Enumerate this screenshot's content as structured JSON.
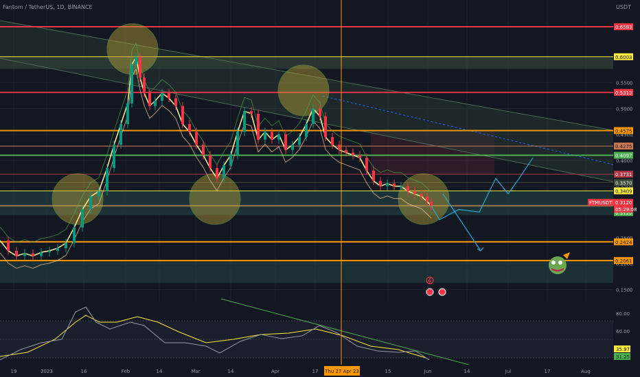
{
  "header": {
    "title": "Fantom / TetherUS, 1D, BINANCE",
    "currency": "USDT"
  },
  "chart_data": {
    "type": "candlestick",
    "symbol": "FTMUSDT",
    "countdown": "05:29:08",
    "ylim": [
      0.14,
      0.71
    ],
    "y_ticks": [
      0.55,
      0.5,
      0.45,
      0.4,
      0.35,
      0.3,
      0.25,
      0.2,
      0.15
    ],
    "y_tick_labels": [
      "0.5500",
      "0.5000",
      "0.4500",
      "0.4000",
      "0.3500",
      "0.3000",
      "0.2500",
      "0.2000",
      "0.1500"
    ],
    "x_ticks": [
      "19",
      "2023",
      "16",
      "Feb",
      "14",
      "Mar",
      "14",
      "Apr",
      "17",
      "15",
      "Jun",
      "14",
      "Jul",
      "17",
      "Aug"
    ],
    "crosshair_label": "Thu 27 Apr 23",
    "levels": [
      {
        "price": 0.6583,
        "label": "0.6583",
        "color": "#f23645"
      },
      {
        "price": 0.6003,
        "label": "0.6003",
        "color": "#ffeb3b"
      },
      {
        "price": 0.5313,
        "label": "0.5313",
        "color": "#f23645"
      },
      {
        "price": 0.4575,
        "label": "0.4575",
        "color": "#ff9800"
      },
      {
        "price": 0.4275,
        "label": "0.4275",
        "color": "#cc7a52"
      },
      {
        "price": 0.4097,
        "label": "0.4097",
        "color": "#4caf50"
      },
      {
        "price": 0.3731,
        "label": "0.3731",
        "color": "#b03545"
      },
      {
        "price": 0.357,
        "label": "0.3570",
        "color": "#3c4a3a"
      },
      {
        "price": 0.3409,
        "label": "0.3409",
        "color": "#ffeb3b"
      },
      {
        "price": 0.312,
        "label": "0.3120",
        "color": "#f23645"
      },
      {
        "price": 0.312,
        "label": "0.3120",
        "color": "#4caf50"
      },
      {
        "price": 0.2424,
        "label": "0.2424",
        "color": "#ff9800"
      },
      {
        "price": 0.2061,
        "label": "0.2061",
        "color": "#ff9800"
      }
    ],
    "price_label": {
      "symbol": "FTMUSDT",
      "price": "0.3120",
      "countdown": "05:29:08"
    },
    "close_path": [
      [
        0,
        0.245
      ],
      [
        12,
        0.225
      ],
      [
        24,
        0.215
      ],
      [
        36,
        0.22
      ],
      [
        48,
        0.215
      ],
      [
        60,
        0.222
      ],
      [
        72,
        0.225
      ],
      [
        84,
        0.23
      ],
      [
        96,
        0.24
      ],
      [
        108,
        0.27
      ],
      [
        120,
        0.305
      ],
      [
        132,
        0.33
      ],
      [
        144,
        0.34
      ],
      [
        156,
        0.385
      ],
      [
        166,
        0.43
      ],
      [
        176,
        0.47
      ],
      [
        186,
        0.51
      ],
      [
        192,
        0.585
      ],
      [
        198,
        0.6
      ],
      [
        204,
        0.56
      ],
      [
        210,
        0.53
      ],
      [
        218,
        0.505
      ],
      [
        226,
        0.515
      ],
      [
        236,
        0.53
      ],
      [
        246,
        0.52
      ],
      [
        256,
        0.505
      ],
      [
        266,
        0.47
      ],
      [
        276,
        0.455
      ],
      [
        286,
        0.43
      ],
      [
        296,
        0.41
      ],
      [
        306,
        0.385
      ],
      [
        316,
        0.365
      ],
      [
        326,
        0.39
      ],
      [
        336,
        0.41
      ],
      [
        346,
        0.455
      ],
      [
        356,
        0.495
      ],
      [
        366,
        0.49
      ],
      [
        376,
        0.44
      ],
      [
        386,
        0.455
      ],
      [
        396,
        0.44
      ],
      [
        406,
        0.45
      ],
      [
        416,
        0.42
      ],
      [
        426,
        0.43
      ],
      [
        436,
        0.445
      ],
      [
        446,
        0.47
      ],
      [
        456,
        0.5
      ],
      [
        466,
        0.485
      ],
      [
        474,
        0.445
      ],
      [
        484,
        0.43
      ],
      [
        494,
        0.42
      ],
      [
        504,
        0.415
      ],
      [
        514,
        0.41
      ],
      [
        524,
        0.405
      ],
      [
        534,
        0.38
      ],
      [
        544,
        0.36
      ],
      [
        554,
        0.35
      ],
      [
        564,
        0.355
      ],
      [
        574,
        0.35
      ],
      [
        584,
        0.35
      ],
      [
        594,
        0.34
      ],
      [
        604,
        0.335
      ],
      [
        614,
        0.33
      ],
      [
        622,
        0.32
      ],
      [
        628,
        0.312
      ]
    ],
    "projection": [
      [
        628,
        0.312
      ],
      [
        640,
        0.285
      ],
      [
        668,
        0.305
      ],
      [
        698,
        0.3
      ],
      [
        722,
        0.365
      ],
      [
        740,
        0.335
      ],
      [
        756,
        0.365
      ],
      [
        776,
        0.405
      ]
    ],
    "projection_down": [
      [
        645,
        0.335
      ],
      [
        700,
        0.225
      ]
    ],
    "circles": [
      {
        "x": 193,
        "y": 0.615
      },
      {
        "x": 442,
        "y": 0.535
      },
      {
        "x": 113,
        "y": 0.325
      },
      {
        "x": 313,
        "y": 0.325
      },
      {
        "x": 617,
        "y": 0.325
      }
    ],
    "oscillator": {
      "y_ticks": [
        80.0,
        60.0
      ],
      "y_tick_labels": [
        "80.00",
        "60.00"
      ],
      "values": [
        {
          "label": "35.97",
          "color": "#ffeb3b"
        },
        {
          "label": "31.25",
          "color": "#4caf50"
        }
      ]
    }
  }
}
